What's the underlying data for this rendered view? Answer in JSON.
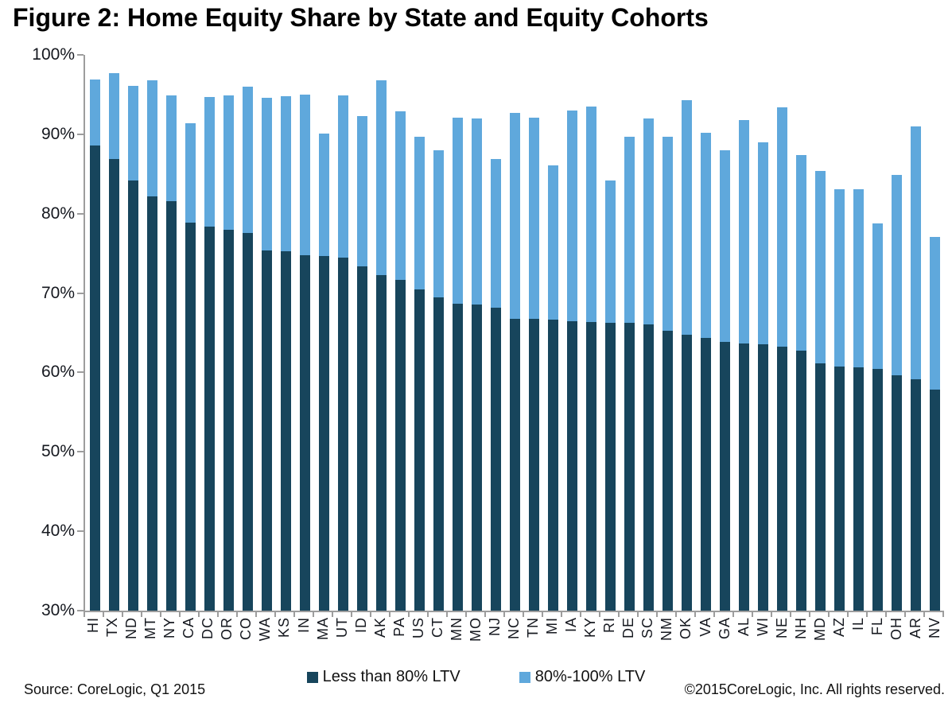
{
  "title": "Figure 2: Home Equity Share by State and Equity Cohorts",
  "colors": {
    "dark_series": "#17455C",
    "light_series": "#5FA8DC",
    "axis": "#9d9d9d",
    "text": "#15181f"
  },
  "chart_data": {
    "type": "bar",
    "stacked": true,
    "title": "Figure 2: Home Equity Share by State and Equity Cohorts",
    "xlabel": "",
    "ylabel": "",
    "grid": false,
    "legend_position": "bottom",
    "y_axis": {
      "min": 30,
      "max": 100,
      "step": 10,
      "tick_labels": [
        "100%",
        "90%",
        "80%",
        "70%",
        "60%",
        "50%",
        "40%",
        "30%"
      ],
      "note": "bars are clipped at the 30% axis minimum"
    },
    "categories": [
      "HI",
      "TX",
      "ND",
      "MT",
      "NY",
      "CA",
      "DC",
      "OR",
      "CO",
      "WA",
      "KS",
      "IN",
      "MA",
      "UT",
      "ID",
      "AK",
      "PA",
      "US",
      "CT",
      "MN",
      "MO",
      "NJ",
      "NC",
      "TN",
      "MI",
      "IA",
      "KY",
      "RI",
      "DE",
      "SC",
      "NM",
      "OK",
      "VA",
      "GA",
      "AL",
      "WI",
      "NE",
      "NH",
      "MD",
      "AZ",
      "IL",
      "FL",
      "OH",
      "AR",
      "NV"
    ],
    "series": [
      {
        "name": "Less than 80% LTV",
        "color": "#17455C",
        "values": [
          88.6,
          86.9,
          84.2,
          82.2,
          81.6,
          78.9,
          78.4,
          78.0,
          77.6,
          75.4,
          75.3,
          74.8,
          74.7,
          74.5,
          73.4,
          72.3,
          71.7,
          70.5,
          69.5,
          68.7,
          68.6,
          68.2,
          66.8,
          66.8,
          66.7,
          66.5,
          66.4,
          66.3,
          66.3,
          66.1,
          65.3,
          64.8,
          64.4,
          63.8,
          63.6,
          63.5,
          63.2,
          62.7,
          61.1,
          60.7,
          60.6,
          60.4,
          59.6,
          59.1,
          57.8
        ]
      },
      {
        "name": "80%-100% LTV",
        "color": "#5FA8DC",
        "values": [
          8.3,
          10.8,
          11.9,
          14.6,
          13.3,
          12.5,
          16.3,
          16.9,
          18.4,
          19.2,
          19.5,
          20.2,
          15.4,
          20.4,
          18.9,
          24.5,
          21.2,
          19.2,
          18.5,
          23.4,
          23.4,
          18.7,
          25.9,
          25.3,
          19.4,
          26.5,
          27.1,
          17.9,
          23.4,
          25.9,
          24.4,
          29.5,
          25.8,
          24.2,
          28.2,
          25.5,
          30.2,
          24.7,
          24.3,
          22.4,
          22.5,
          18.4,
          25.3,
          31.9,
          19.3
        ]
      }
    ]
  },
  "legend": {
    "items": [
      {
        "label": "Less than 80% LTV",
        "color": "#17455C"
      },
      {
        "label": "80%-100% LTV",
        "color": "#5FA8DC"
      }
    ]
  },
  "footer": {
    "source": "Source: CoreLogic, Q1 2015",
    "copyright": "©2015CoreLogic, Inc. All rights reserved."
  }
}
